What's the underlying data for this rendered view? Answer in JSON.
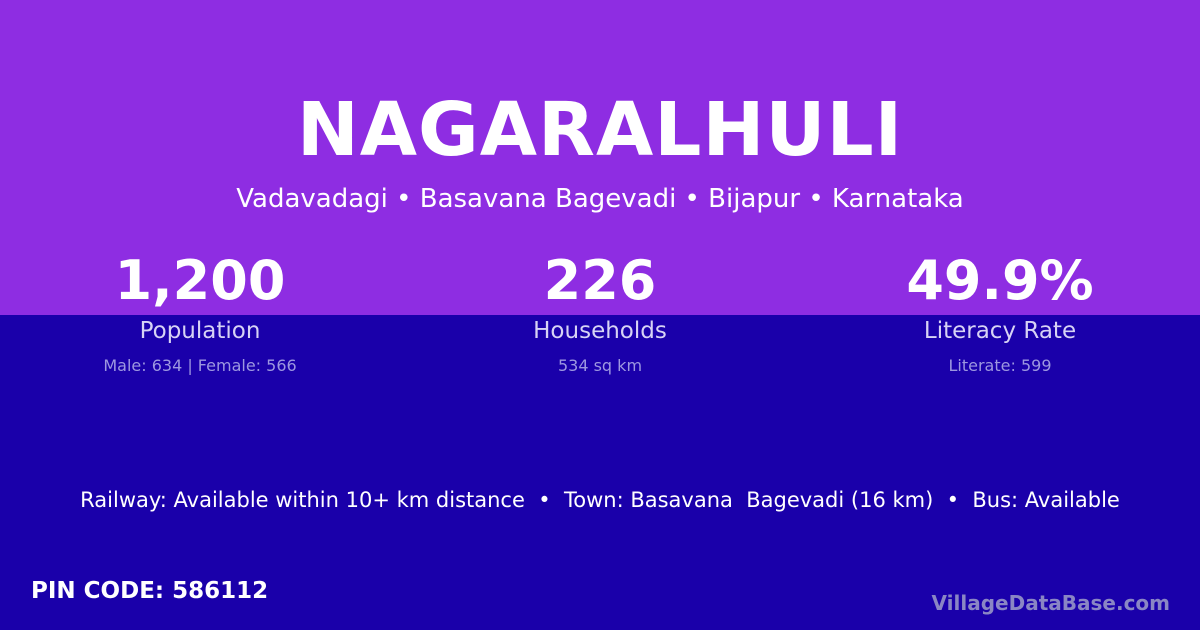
{
  "colors": {
    "top_band": "#8e2de2",
    "bottom_band": "#1a00aa",
    "text": "#ffffff",
    "watermark": "#8a86c4"
  },
  "title": "NAGARALHULI",
  "subtitle": "Vadavadagi • Basavana Bagevadi • Bijapur • Karnataka",
  "stats": [
    {
      "value": "1,200",
      "label": "Population",
      "sub": "Male: 634 | Female: 566"
    },
    {
      "value": "226",
      "label": "Households",
      "sub": "534 sq km"
    },
    {
      "value": "49.9%",
      "label": "Literacy Rate",
      "sub": "Literate: 599"
    }
  ],
  "amenities": "Railway: Available within 10+ km distance  •  Town: Basavana  Bagevadi (16 km)  •  Bus: Available",
  "pin_code": "PIN CODE: 586112",
  "watermark": "VillageDataBase.com"
}
